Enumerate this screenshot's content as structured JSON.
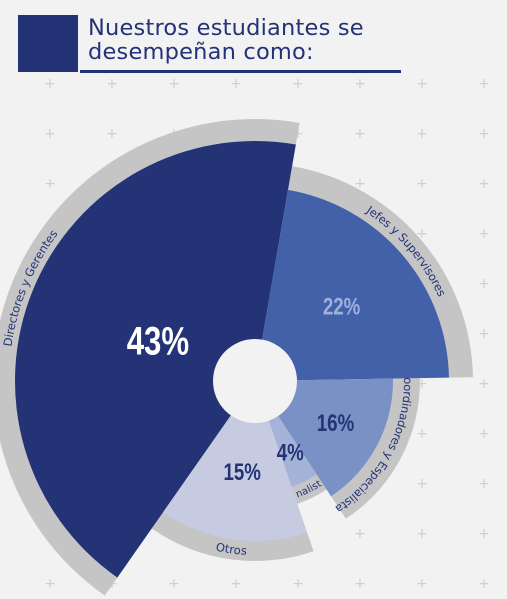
{
  "header": {
    "title": "Nuestros estudiantes se\ndesempeñan como:"
  },
  "colors": {
    "background": "#f3f2f3",
    "accent": "#233375",
    "ring": "#c5c5c5",
    "pattern_plus": "#cfcfcf"
  },
  "decoration": {
    "pattern_glyph": "+"
  },
  "chart_data": {
    "type": "pie",
    "subtype": "polar-area-donut",
    "title": "Nuestros estudiantes se desempeñan como:",
    "slices": [
      {
        "label": "Directores y Gerentes",
        "value": 43,
        "value_label": "43%",
        "color": "#233375",
        "value_color": "#ffffff"
      },
      {
        "label": "Jefes y Supervisores",
        "value": 22,
        "value_label": "22%",
        "color": "#4261a9",
        "value_color": "#9fb0dc"
      },
      {
        "label": "Coordinadores y Especialistas",
        "value": 16,
        "value_label": "16%",
        "color": "#7a91c6",
        "value_color": "#233375"
      },
      {
        "label": "Analista",
        "value": 4,
        "value_label": "4%",
        "color": "#a6b3d9",
        "value_color": "#233375"
      },
      {
        "label": "Otros",
        "value": 15,
        "value_label": "15%",
        "color": "#c6cbe2",
        "value_color": "#233375"
      }
    ],
    "legend": "none"
  }
}
